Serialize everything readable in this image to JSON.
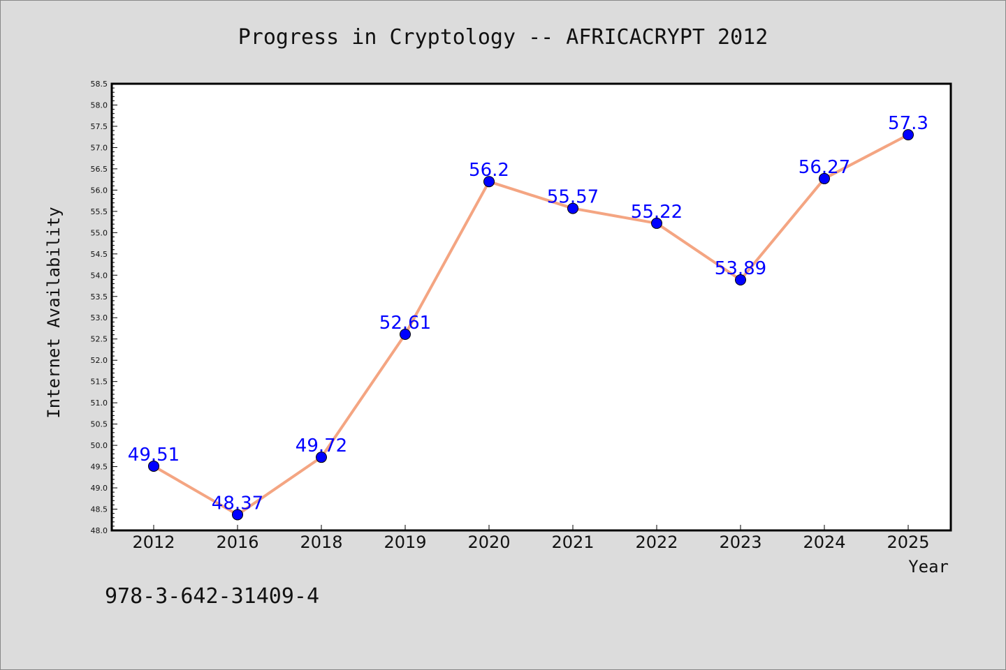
{
  "chart_data": {
    "type": "line",
    "title": "Progress in Cryptology -- AFRICACRYPT 2012",
    "xlabel": "Year",
    "ylabel": "Internet Availability",
    "categories": [
      "2012",
      "2016",
      "2018",
      "2019",
      "2020",
      "2021",
      "2022",
      "2023",
      "2024",
      "2025"
    ],
    "values": [
      49.51,
      48.37,
      49.72,
      52.61,
      56.2,
      55.57,
      55.22,
      53.89,
      56.27,
      57.3
    ],
    "value_labels": [
      "49.51",
      "48.37",
      "49.72",
      "52.61",
      "56.2",
      "55.57",
      "55.22",
      "53.89",
      "56.27",
      "57.3"
    ],
    "ylim": [
      48.0,
      58.5
    ],
    "yticks": [
      "48.0",
      "48.5",
      "49.0",
      "49.5",
      "50.0",
      "50.5",
      "51.0",
      "51.5",
      "52.0",
      "52.5",
      "53.0",
      "53.5",
      "54.0",
      "54.5",
      "55.0",
      "55.5",
      "56.0",
      "56.5",
      "57.0",
      "57.5",
      "58.0",
      "58.5"
    ],
    "grid": false,
    "line_color": "#f4a582",
    "marker_color": "#0000ff",
    "label_color": "#0000ff"
  },
  "annotation": "978-3-642-31409-4"
}
